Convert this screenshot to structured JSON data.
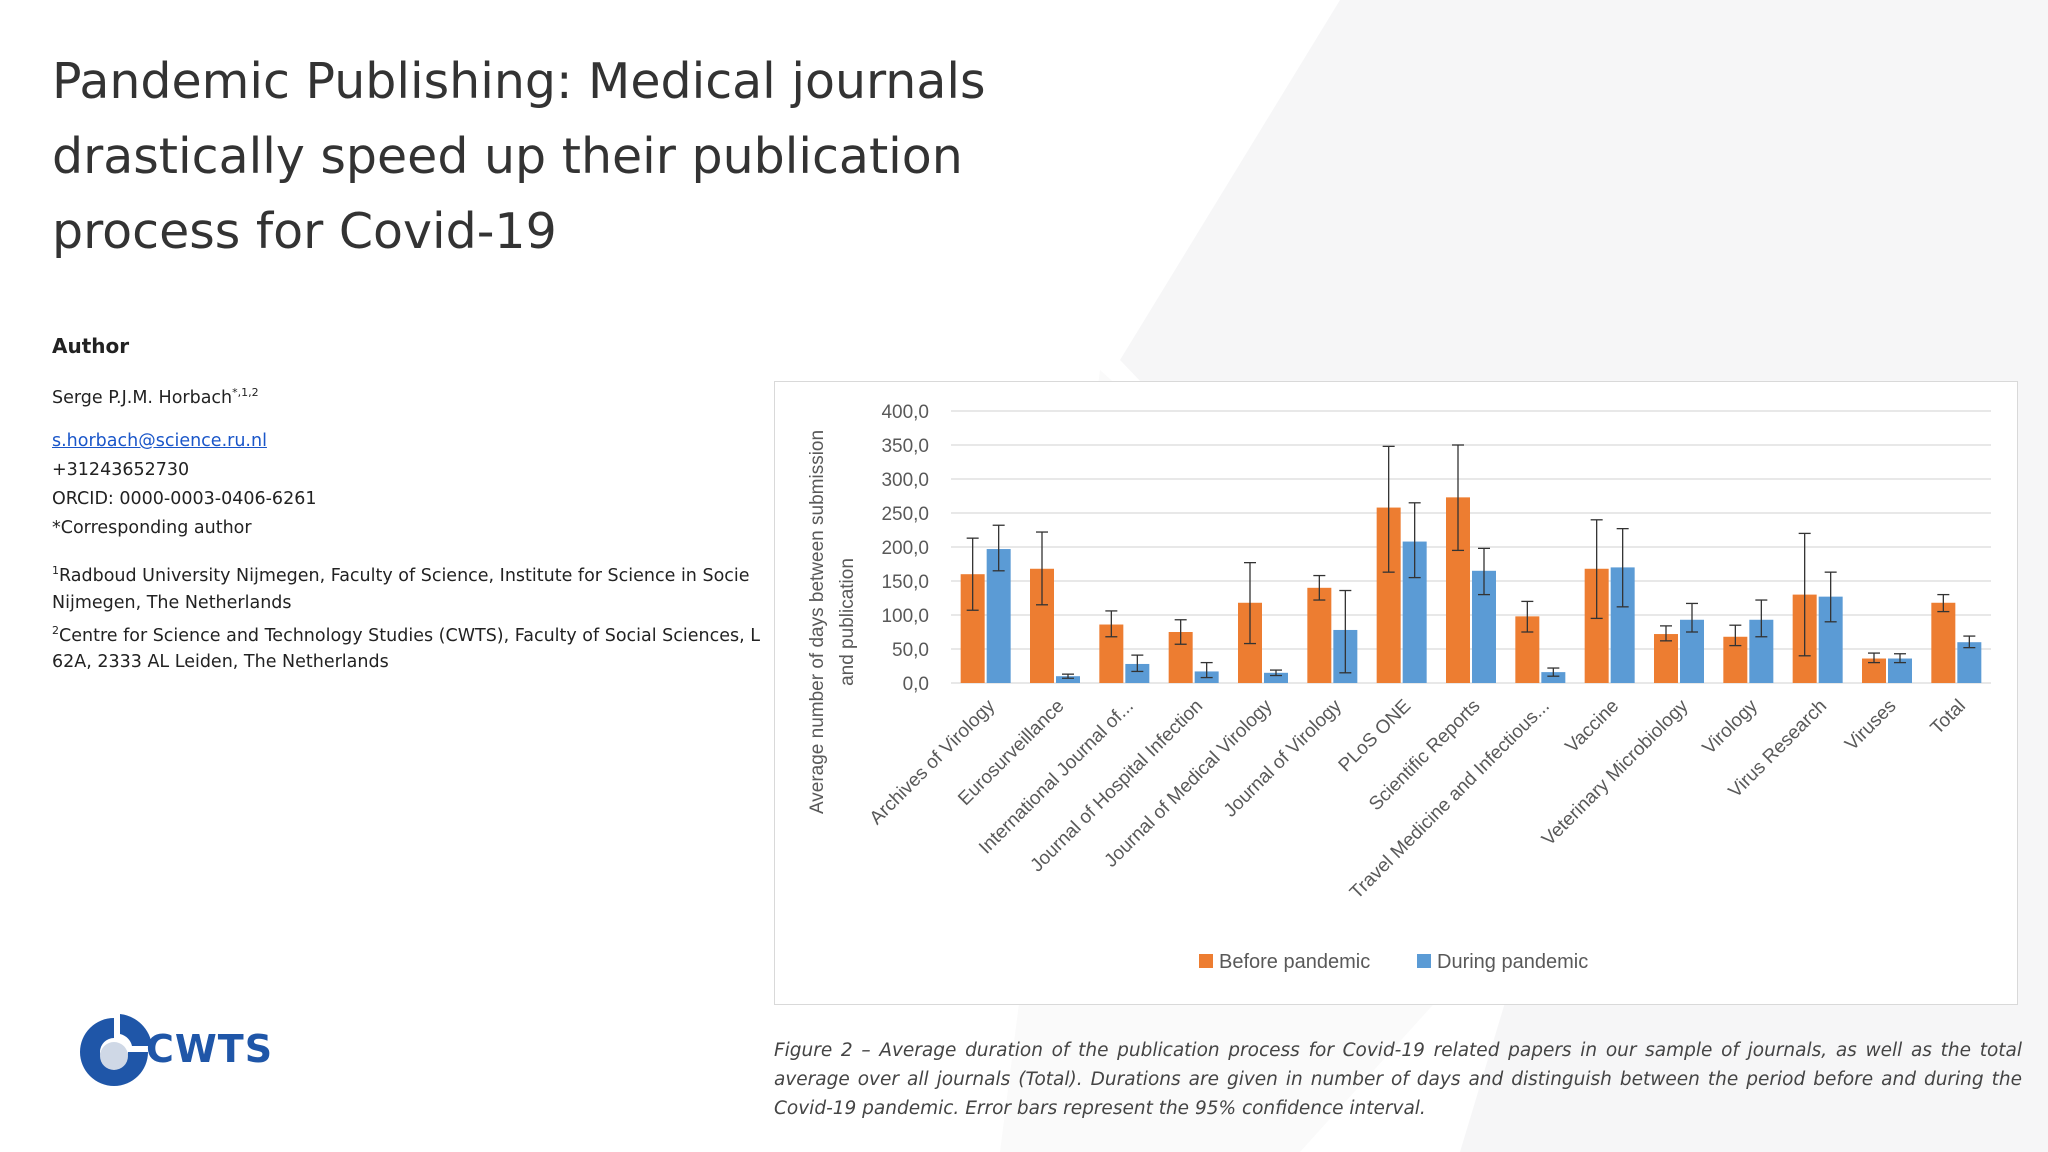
{
  "slide": {
    "title_lines": [
      "Pandemic Publishing: Medical journals",
      "drastically speed up their publication",
      "process for Covid-19"
    ]
  },
  "author": {
    "heading": "Author",
    "name": "Serge P.J.M. Horbach",
    "name_sup": "*,1,2",
    "email": "s.horbach@science.ru.nl",
    "phone": "+31243652730",
    "orcid": "ORCID: 0000-0003-0406-6261",
    "corresponding": "*Corresponding author",
    "affiliation1_sup": "1",
    "affiliation1_line1": "Radboud University Nijmegen, Faculty of Science, Institute for Science in Socie",
    "affiliation1_line2": "Nijmegen, The Netherlands",
    "affiliation2_sup": "2",
    "affiliation2_line1": "Centre for Science and Technology Studies (CWTS), Faculty of Social Sciences, L",
    "affiliation2_line2": "62A, 2333 AL Leiden, The Netherlands"
  },
  "caption": "Figure 2 – Average duration of the publication process for Covid-19 related papers in our sample of journals, as well as the total average over all journals (Total). Durations are given in number of days and distinguish between the period before and during the Covid-19 pandemic. Error bars represent the 95% confidence interval.",
  "logo": {
    "text": "CWTS",
    "icon": "cwts-logo-mark",
    "color": "#1f56a8"
  },
  "colors": {
    "before": "#ed7d31",
    "during": "#5b9bd5",
    "grid": "#d9d9d9",
    "text": "#595959"
  },
  "chart_data": {
    "type": "bar",
    "ylabel": "Average number of days  between submission and publication",
    "ylim": [
      0,
      400
    ],
    "yticks": [
      "0,0",
      "50,0",
      "100,0",
      "150,0",
      "200,0",
      "250,0",
      "300,0",
      "350,0",
      "400,0"
    ],
    "grid": true,
    "legend_position": "bottom",
    "categories": [
      "Archives of Virology",
      "Eurosurveillance",
      "International Journal of...",
      "Journal of Hospital Infection",
      "Journal of Medical Virology",
      "Journal of Virology",
      "PLoS ONE",
      "Scientific Reports",
      "Travel Medicine and Infectious...",
      "Vaccine",
      "Veterinary Microbiology",
      "Virology",
      "Virus Research",
      "Viruses",
      "Total"
    ],
    "series": [
      {
        "name": "Before pandemic",
        "color": "#ed7d31",
        "values": [
          160,
          168,
          86,
          75,
          118,
          140,
          258,
          273,
          98,
          168,
          72,
          68,
          130,
          36,
          118
        ],
        "error_low": [
          107,
          115,
          68,
          57,
          58,
          122,
          163,
          195,
          75,
          95,
          62,
          55,
          40,
          30,
          105
        ],
        "error_high": [
          213,
          222,
          106,
          93,
          177,
          158,
          348,
          350,
          120,
          240,
          84,
          85,
          220,
          44,
          130
        ]
      },
      {
        "name": "During pandemic",
        "color": "#5b9bd5",
        "values": [
          197,
          10,
          28,
          17,
          15,
          78,
          208,
          165,
          16,
          170,
          93,
          93,
          127,
          36,
          60
        ],
        "error_low": [
          165,
          7,
          17,
          8,
          11,
          15,
          155,
          130,
          10,
          112,
          75,
          68,
          90,
          30,
          52
        ],
        "error_high": [
          232,
          13,
          41,
          30,
          19,
          136,
          265,
          198,
          22,
          227,
          117,
          122,
          163,
          43,
          69
        ]
      }
    ]
  }
}
